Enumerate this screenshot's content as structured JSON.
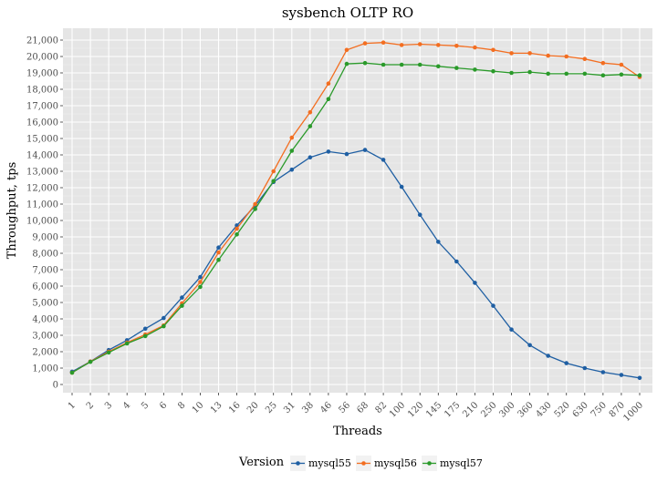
{
  "chart_data": {
    "type": "line",
    "title": "sysbench OLTP RO",
    "xlabel": "Threads",
    "ylabel": "Throughput, tps",
    "ylim": [
      0,
      21000
    ],
    "yticks": [
      0,
      1000,
      2000,
      3000,
      4000,
      5000,
      6000,
      7000,
      8000,
      9000,
      10000,
      11000,
      12000,
      13000,
      14000,
      15000,
      16000,
      17000,
      18000,
      19000,
      20000,
      21000
    ],
    "ytick_labels": [
      "0",
      "1,000",
      "2,000",
      "3,000",
      "4,000",
      "5,000",
      "6,000",
      "7,000",
      "8,000",
      "9,000",
      "10,000",
      "11,000",
      "12,000",
      "13,000",
      "14,000",
      "15,000",
      "16,000",
      "17,000",
      "18,000",
      "19,000",
      "20,000",
      "21,000"
    ],
    "categories": [
      "1",
      "2",
      "3",
      "4",
      "5",
      "6",
      "8",
      "10",
      "13",
      "16",
      "20",
      "25",
      "31",
      "38",
      "46",
      "56",
      "68",
      "82",
      "100",
      "120",
      "145",
      "175",
      "210",
      "250",
      "300",
      "360",
      "430",
      "520",
      "630",
      "750",
      "870",
      "1000"
    ],
    "grid": true,
    "legend": {
      "title": "Version",
      "position": "bottom"
    },
    "series": [
      {
        "name": "mysql55",
        "color": "#1f5fa3",
        "values": [
          780,
          1400,
          2100,
          2700,
          3400,
          4050,
          5300,
          6550,
          8350,
          9700,
          10900,
          12350,
          13100,
          13850,
          14200,
          14050,
          14300,
          13700,
          12050,
          10350,
          8700,
          7500,
          6200,
          4800,
          3350,
          2400,
          1750,
          1300,
          1000,
          750,
          580,
          400
        ]
      },
      {
        "name": "mysql56",
        "color": "#f36e21",
        "values": [
          720,
          1400,
          2000,
          2550,
          3050,
          3600,
          4950,
          6250,
          8050,
          9500,
          11000,
          13000,
          15050,
          16600,
          18350,
          20400,
          20800,
          20850,
          20700,
          20750,
          20700,
          20650,
          20550,
          20400,
          20200,
          20200,
          20050,
          20000,
          19850,
          19600,
          19500,
          18750
        ]
      },
      {
        "name": "mysql57",
        "color": "#2a9a2a",
        "values": [
          720,
          1380,
          1950,
          2500,
          2950,
          3550,
          4800,
          5950,
          7600,
          9150,
          10700,
          12400,
          14250,
          15750,
          17400,
          19550,
          19600,
          19500,
          19500,
          19500,
          19400,
          19300,
          19200,
          19100,
          19000,
          19050,
          18950,
          18950,
          18950,
          18850,
          18900,
          18850
        ]
      }
    ]
  }
}
